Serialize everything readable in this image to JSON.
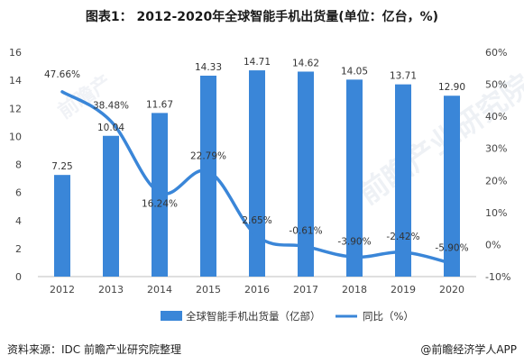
{
  "title": "图表1：  2012-2020年全球智能手机出货量(单位：亿台，%)",
  "footer": {
    "source": "资料来源：IDC 前瞻产业研究院整理",
    "credit": "@前瞻经济学人APP"
  },
  "watermark": "前瞻产业研究院",
  "watermark_small": "前瞻产",
  "colors": {
    "bar": "#3a86d8",
    "line": "#3a86d8",
    "grid": "#d9d9d9"
  },
  "chart_data": {
    "type": "bar",
    "categories": [
      "2012",
      "2013",
      "2014",
      "2015",
      "2016",
      "2017",
      "2018",
      "2019",
      "2020"
    ],
    "series": [
      {
        "name": "全球智能手机出货量（亿部）",
        "type": "bar",
        "axis": "left",
        "values": [
          7.25,
          10.04,
          11.67,
          14.33,
          14.71,
          14.62,
          14.05,
          13.71,
          12.9
        ],
        "labels": [
          "7.25",
          "10.04",
          "11.67",
          "14.33",
          "14.71",
          "14.62",
          "14.05",
          "13.71",
          "12.90"
        ]
      },
      {
        "name": "同比（%）",
        "type": "line",
        "axis": "right",
        "values": [
          47.66,
          38.48,
          16.24,
          22.79,
          2.65,
          -0.61,
          -3.9,
          -2.42,
          -5.9
        ],
        "labels": [
          "47.66%",
          "38.48%",
          "16.24%",
          "22.79%",
          "2.65%",
          "-0.61%",
          "-3.90%",
          "-2.42%",
          "-5.90%"
        ]
      }
    ],
    "y_left": {
      "range": [
        0,
        16
      ],
      "ticks": [
        "0",
        "2",
        "4",
        "6",
        "8",
        "10",
        "12",
        "14",
        "16"
      ]
    },
    "y_right": {
      "range": [
        -10,
        60
      ],
      "ticks": [
        "-10%",
        "0%",
        "10%",
        "20%",
        "30%",
        "40%",
        "50%",
        "60%"
      ]
    },
    "grid": false,
    "legend_position": "bottom"
  }
}
